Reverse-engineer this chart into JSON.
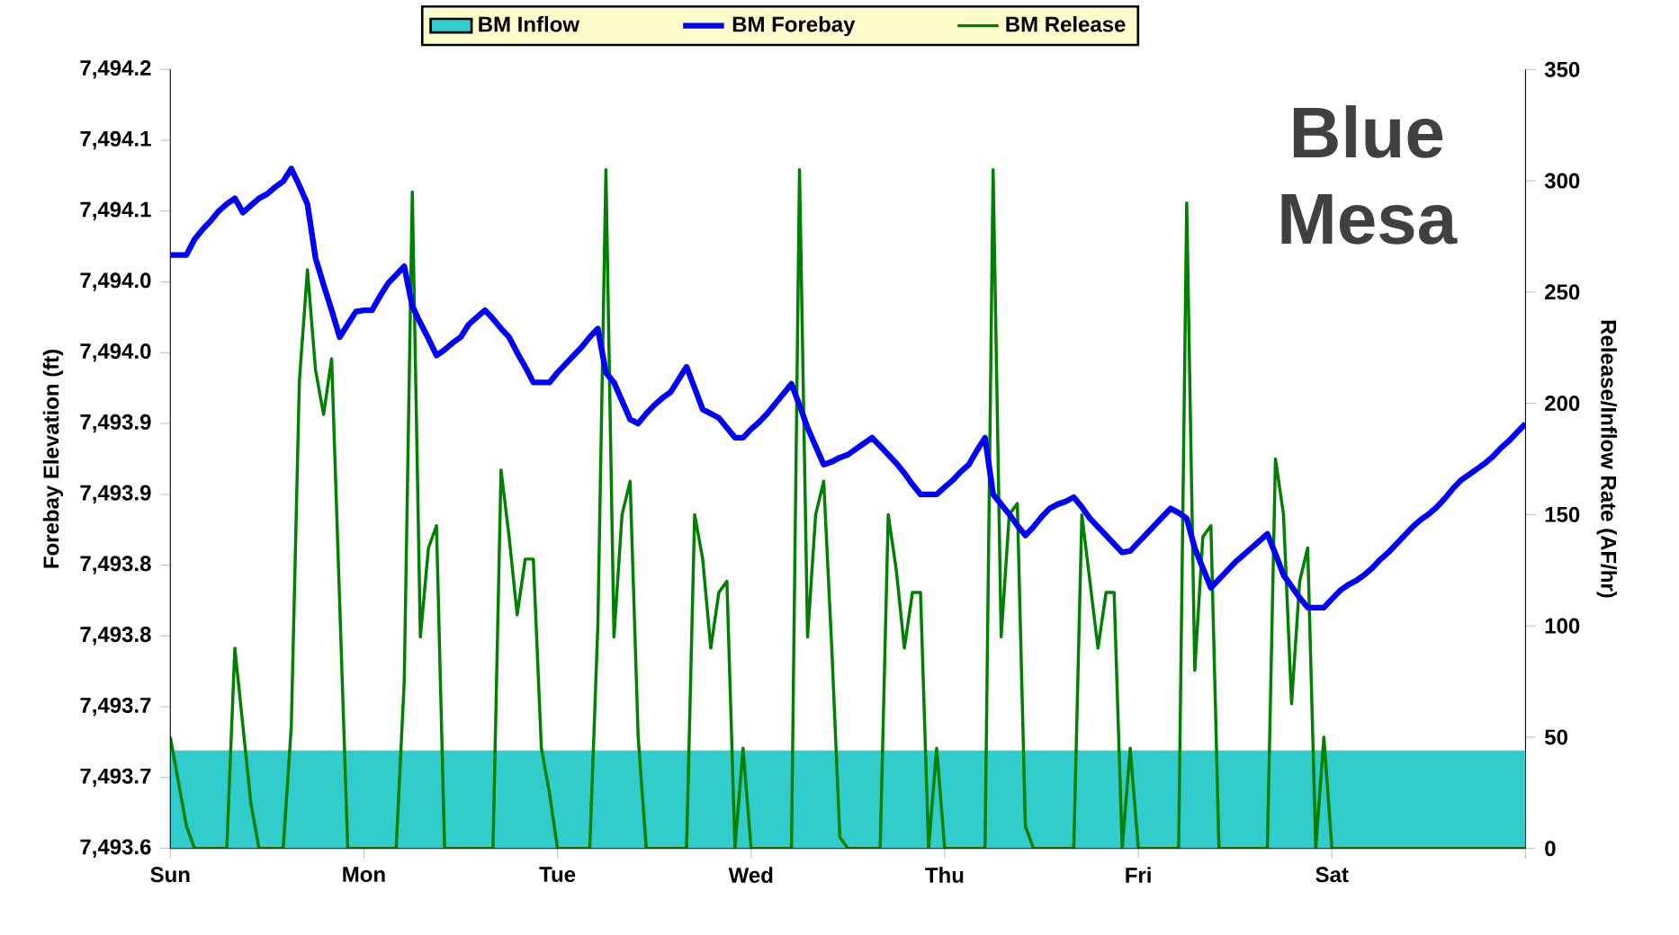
{
  "chart_data": {
    "type": "line",
    "ylabel": "Forebay Elevation (ft)",
    "y2label": "Release/Inflow Rate (AF/hr)",
    "annotations": [
      "Blue Mesa"
    ],
    "legend": "top",
    "marker": "none",
    "categories": [
      "Sun",
      null,
      null,
      null,
      null,
      null,
      null,
      null,
      null,
      null,
      null,
      null,
      null,
      null,
      null,
      null,
      null,
      null,
      null,
      null,
      null,
      null,
      null,
      null,
      "Mon",
      null,
      null,
      null,
      null,
      null,
      null,
      null,
      null,
      null,
      null,
      null,
      null,
      null,
      null,
      null,
      null,
      null,
      null,
      null,
      null,
      null,
      null,
      null,
      "Tue",
      null,
      null,
      null,
      null,
      null,
      null,
      null,
      null,
      null,
      null,
      null,
      null,
      null,
      null,
      null,
      null,
      null,
      null,
      null,
      null,
      null,
      null,
      null,
      "Wed",
      null,
      null,
      null,
      null,
      null,
      null,
      null,
      null,
      null,
      null,
      null,
      null,
      null,
      null,
      null,
      null,
      null,
      null,
      null,
      null,
      null,
      null,
      null,
      "Thu",
      null,
      null,
      null,
      null,
      null,
      null,
      null,
      null,
      null,
      null,
      null,
      null,
      null,
      null,
      null,
      null,
      null,
      null,
      null,
      null,
      null,
      null,
      null,
      "Fri",
      null,
      null,
      null,
      null,
      null,
      null,
      null,
      null,
      null,
      null,
      null,
      null,
      null,
      null,
      null,
      null,
      null,
      null,
      null,
      null,
      null,
      null,
      null,
      "Sat",
      null,
      null,
      null,
      null,
      null,
      null,
      null,
      null,
      null,
      null,
      null,
      null,
      null,
      null,
      null,
      null,
      null,
      null,
      null,
      null,
      null,
      null,
      null,
      null
    ],
    "ylim": [
      7493.65,
      7494.2
    ],
    "yticks": [
      {
        "value": 7493.65,
        "label": "7,493.6"
      },
      {
        "value": 7493.7,
        "label": "7,493.7"
      },
      {
        "value": 7493.75,
        "label": "7,493.7"
      },
      {
        "value": 7493.8,
        "label": "7,493.8"
      },
      {
        "value": 7493.85,
        "label": "7,493.8"
      },
      {
        "value": 7493.9,
        "label": "7,493.9"
      },
      {
        "value": 7493.95,
        "label": "7,493.9"
      },
      {
        "value": 7494.0,
        "label": "7,494.0"
      },
      {
        "value": 7494.05,
        "label": "7,494.0"
      },
      {
        "value": 7494.1,
        "label": "7,494.1"
      },
      {
        "value": 7494.15,
        "label": "7,494.1"
      },
      {
        "value": 7494.2,
        "label": "7,494.2"
      }
    ],
    "y2lim": [
      0,
      350
    ],
    "y2ticks": [
      0,
      50,
      100,
      150,
      200,
      250,
      300,
      350
    ],
    "series": [
      {
        "name": "BM Inflow",
        "type": "area",
        "axis": "y2",
        "color": "#33cccc",
        "values": [
          44,
          44,
          44,
          44,
          44,
          44,
          44,
          44,
          44,
          44,
          44,
          44,
          44,
          44,
          44,
          44,
          44,
          44,
          44,
          44,
          44,
          44,
          44,
          44,
          44,
          44,
          44,
          44,
          44,
          44,
          44,
          44,
          44,
          44,
          44,
          44,
          44,
          44,
          44,
          44,
          44,
          44,
          44,
          44,
          44,
          44,
          44,
          44,
          44,
          44,
          44,
          44,
          44,
          44,
          44,
          44,
          44,
          44,
          44,
          44,
          44,
          44,
          44,
          44,
          44,
          44,
          44,
          44,
          44,
          44,
          44,
          44,
          44,
          44,
          44,
          44,
          44,
          44,
          44,
          44,
          44,
          44,
          44,
          44,
          44,
          44,
          44,
          44,
          44,
          44,
          44,
          44,
          44,
          44,
          44,
          44,
          44,
          44,
          44,
          44,
          44,
          44,
          44,
          44,
          44,
          44,
          44,
          44,
          44,
          44,
          44,
          44,
          44,
          44,
          44,
          44,
          44,
          44,
          44,
          44,
          44,
          44,
          44,
          44,
          44,
          44,
          44,
          44,
          44,
          44,
          44,
          44,
          44,
          44,
          44,
          44,
          44,
          44,
          44,
          44,
          44,
          44,
          44,
          44,
          44,
          44,
          44,
          44,
          44,
          44,
          44,
          44,
          44,
          44,
          44,
          44,
          44,
          44,
          44,
          44,
          44,
          44,
          44,
          44,
          44,
          44,
          44,
          44,
          44
        ]
      },
      {
        "name": "BM Forebay",
        "color": "#0000ff",
        "values": [
          7494.069,
          7494.069,
          7494.069,
          7494.08,
          7494.087,
          7494.093,
          7494.1,
          7494.105,
          7494.109,
          7494.099,
          7494.104,
          7494.109,
          7494.112,
          7494.117,
          7494.121,
          7494.13,
          7494.118,
          7494.105,
          7494.067,
          7494.048,
          7494.03,
          7494.011,
          7494.02,
          7494.029,
          7494.03,
          7494.03,
          7494.04,
          7494.049,
          7494.055,
          7494.061,
          7494.033,
          7494.021,
          7494.01,
          7493.998,
          7494.002,
          7494.007,
          7494.011,
          7494.02,
          7494.025,
          7494.03,
          7494.024,
          7494.017,
          7494.011,
          7494.0,
          7493.99,
          7493.979,
          7493.979,
          7493.979,
          7493.986,
          7493.992,
          7493.998,
          7494.004,
          7494.011,
          7494.017,
          7493.986,
          7493.979,
          7493.966,
          7493.953,
          7493.95,
          7493.957,
          7493.963,
          7493.968,
          7493.972,
          7493.981,
          7493.99,
          7493.975,
          7493.96,
          7493.957,
          7493.954,
          7493.947,
          7493.94,
          7493.94,
          7493.946,
          7493.951,
          7493.957,
          7493.964,
          7493.971,
          7493.978,
          7493.963,
          7493.947,
          7493.934,
          7493.921,
          7493.923,
          7493.926,
          7493.928,
          7493.932,
          7493.936,
          7493.94,
          7493.934,
          7493.928,
          7493.922,
          7493.915,
          7493.907,
          7493.9,
          7493.9,
          7493.9,
          7493.905,
          7493.91,
          7493.916,
          7493.921,
          7493.931,
          7493.94,
          7493.9,
          7493.893,
          7493.886,
          7493.878,
          7493.871,
          7493.877,
          7493.884,
          7493.89,
          7493.893,
          7493.895,
          7493.898,
          7493.891,
          7493.883,
          7493.877,
          7493.871,
          7493.865,
          7493.859,
          7493.86,
          7493.866,
          7493.872,
          7493.878,
          7493.884,
          7493.89,
          7493.887,
          7493.883,
          7493.862,
          7493.848,
          7493.834,
          7493.84,
          7493.846,
          7493.852,
          7493.857,
          7493.862,
          7493.867,
          7493.872,
          7493.858,
          7493.843,
          7493.835,
          7493.827,
          7493.82,
          7493.82,
          7493.82,
          7493.826,
          7493.832,
          7493.836,
          7493.839,
          7493.843,
          7493.848,
          7493.854,
          7493.859,
          7493.865,
          7493.871,
          7493.877,
          7493.882,
          7493.886,
          7493.891,
          7493.897,
          7493.904,
          7493.91,
          7493.914,
          7493.918,
          7493.922,
          7493.927,
          7493.933,
          7493.938,
          7493.944,
          7493.95
        ]
      },
      {
        "name": "BM Release",
        "axis": "y2",
        "color": "#008000",
        "values": [
          50,
          30,
          10,
          0,
          0,
          0,
          0,
          0,
          90,
          55,
          20,
          0,
          0,
          0,
          0,
          55,
          210,
          260,
          215,
          195,
          220,
          110,
          0,
          0,
          0,
          0,
          0,
          0,
          0,
          75,
          295,
          95,
          135,
          145,
          0,
          0,
          0,
          0,
          0,
          0,
          0,
          170,
          140,
          105,
          130,
          130,
          45,
          25,
          0,
          0,
          0,
          0,
          0,
          100,
          305,
          95,
          150,
          165,
          50,
          0,
          0,
          0,
          0,
          0,
          0,
          150,
          130,
          90,
          115,
          120,
          0,
          45,
          0,
          0,
          0,
          0,
          0,
          0,
          305,
          95,
          150,
          165,
          90,
          5,
          0,
          0,
          0,
          0,
          0,
          150,
          125,
          90,
          115,
          115,
          0,
          45,
          0,
          0,
          0,
          0,
          0,
          0,
          305,
          95,
          150,
          155,
          10,
          0,
          0,
          0,
          0,
          0,
          0,
          150,
          120,
          90,
          115,
          115,
          0,
          45,
          0,
          0,
          0,
          0,
          0,
          0,
          290,
          80,
          140,
          145,
          0,
          0,
          0,
          0,
          0,
          0,
          0,
          175,
          150,
          65,
          120,
          135,
          0,
          50,
          0,
          0,
          0,
          0,
          0,
          0,
          0,
          0,
          0,
          0,
          0,
          0,
          0,
          0,
          0,
          0,
          0,
          0,
          0,
          0,
          0,
          0,
          0,
          0,
          0
        ]
      }
    ]
  }
}
